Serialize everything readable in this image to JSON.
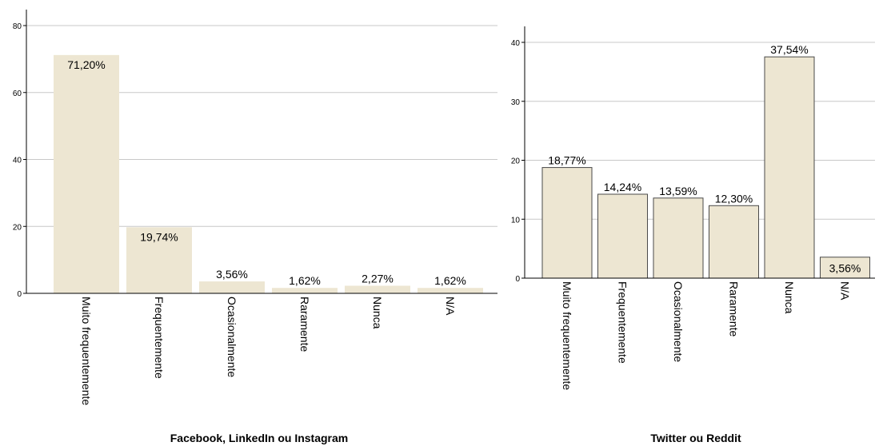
{
  "chart_data": [
    {
      "type": "bar",
      "title": "Facebook, LinkedIn ou Instagram",
      "categories": [
        "Muito frequentemente",
        "Frequentemente",
        "Ocasionalmente",
        "Raramente",
        "Nunca",
        "N/A"
      ],
      "values": [
        71.2,
        19.74,
        3.56,
        1.62,
        2.27,
        1.62
      ],
      "data_labels": [
        "71,20%",
        "19,74%",
        "3,56%",
        "1,62%",
        "2,27%",
        "1,62%"
      ],
      "yticks": [
        "0",
        "20",
        "40",
        "60",
        "80"
      ],
      "ylim": [
        0,
        80
      ],
      "grid": true,
      "bar_color": "#ede6d2",
      "bar_outline": false
    },
    {
      "type": "bar",
      "title": "Twitter ou Reddit",
      "categories": [
        "Muito frequentemente",
        "Frequentemente",
        "Ocasionalmente",
        "Raramente",
        "Nunca",
        "N/A"
      ],
      "values": [
        18.77,
        14.24,
        13.59,
        12.3,
        37.54,
        3.56
      ],
      "data_labels": [
        "18,77%",
        "14,24%",
        "13,59%",
        "12,30%",
        "37,54%",
        "3,56%"
      ],
      "yticks": [
        "0",
        "10",
        "20",
        "30",
        "40"
      ],
      "ylim": [
        0,
        40
      ],
      "grid": true,
      "bar_color": "#ede6d2",
      "bar_outline": true
    }
  ]
}
